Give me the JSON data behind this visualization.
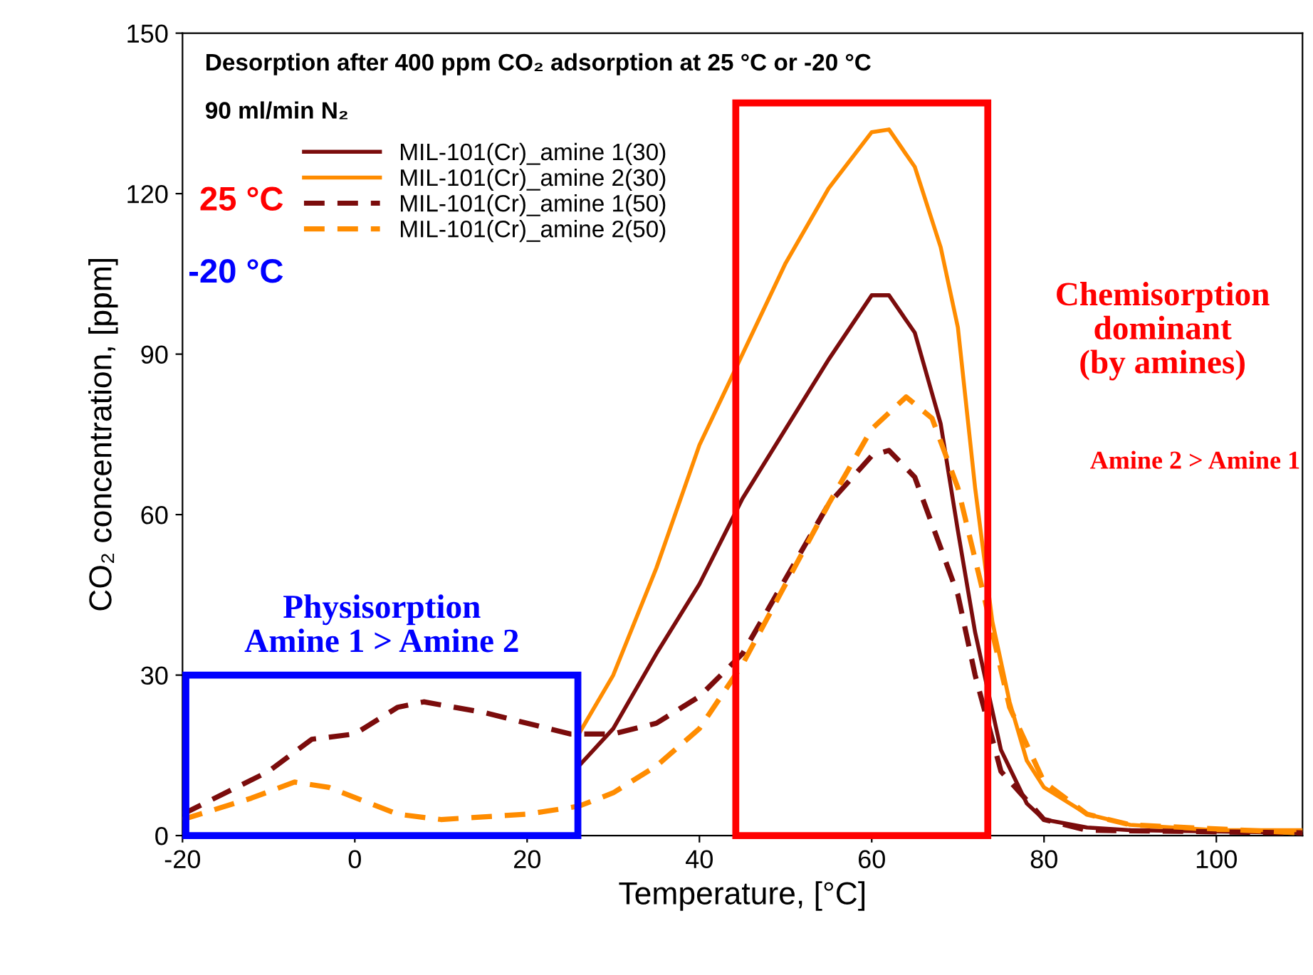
{
  "chart_data": {
    "type": "line",
    "title": "Desorption after 400 ppm CO₂ adsorption at 25 °C or -20 °C",
    "subtitle": "90 ml/min N₂",
    "xlabel": "Temperature, [°C]",
    "ylabel": "CO₂ concentration, [ppm]",
    "xlim": [
      -20,
      110
    ],
    "xticks": [
      -20,
      0,
      20,
      40,
      60,
      80,
      100
    ],
    "ylim": [
      0,
      150
    ],
    "yticks": [
      0,
      30,
      60,
      90,
      120,
      150
    ],
    "grid": false,
    "legend": "top left",
    "marker": "none",
    "series": [
      {
        "name": "MIL-101(Cr)_amine 1(30)",
        "color": "#7b0c0c",
        "line_style": "solid",
        "x": [
          26,
          30,
          35,
          40,
          45,
          50,
          55,
          60,
          62,
          65,
          68,
          70,
          72,
          75,
          78,
          80,
          85,
          90,
          110
        ],
        "values": [
          13,
          20,
          34,
          47,
          63,
          76,
          89,
          101,
          101,
          94,
          77,
          57,
          38,
          16,
          6,
          3,
          1.5,
          1,
          0.5
        ]
      },
      {
        "name": "MIL-101(Cr)_amine 2(30)",
        "color": "#ff8c00",
        "line_style": "solid",
        "x": [
          26,
          30,
          35,
          40,
          45,
          50,
          55,
          60,
          62,
          65,
          68,
          70,
          72,
          74,
          76,
          78,
          80,
          85,
          90,
          100,
          110
        ],
        "values": [
          19,
          30,
          50,
          73,
          90,
          107,
          121,
          131.5,
          132,
          125,
          110,
          95,
          65,
          40,
          25,
          14,
          9,
          4,
          2,
          1,
          1
        ]
      },
      {
        "name": "MIL-101(Cr)_amine 1(50)",
        "color": "#7b0c0c",
        "line_style": "dashed",
        "x": [
          -20,
          -10,
          -5,
          0,
          5,
          8,
          15,
          25,
          30,
          35,
          40,
          45,
          50,
          55,
          60,
          62,
          65,
          70,
          72,
          75,
          80,
          85,
          110
        ],
        "values": [
          4,
          12,
          18,
          19,
          24,
          25,
          23,
          19,
          19,
          21,
          26,
          34,
          48,
          62,
          71,
          72,
          67,
          45,
          30,
          12,
          3,
          1,
          0.5
        ]
      },
      {
        "name": "MIL-101(Cr)_amine 2(50)",
        "color": "#ff8c00",
        "line_style": "dashed",
        "x": [
          -20,
          -12,
          -7,
          -3,
          5,
          10,
          20,
          26,
          30,
          35,
          40,
          45,
          50,
          55,
          60,
          64,
          67,
          70,
          73,
          76,
          80,
          85,
          90,
          110
        ],
        "values": [
          3,
          7,
          10,
          9,
          4,
          3,
          4,
          5.5,
          8,
          13,
          20,
          32,
          47,
          62,
          76,
          82,
          78,
          65,
          45,
          24,
          10,
          4,
          2,
          0.5
        ]
      }
    ],
    "annotations": [
      "Physisorption\nAmine 1 > Amine 2",
      "Chemisorption\ndominant\n(by amines)",
      "25 °C",
      "-20 °C",
      "Amine 2 > Amine 1"
    ]
  }
}
